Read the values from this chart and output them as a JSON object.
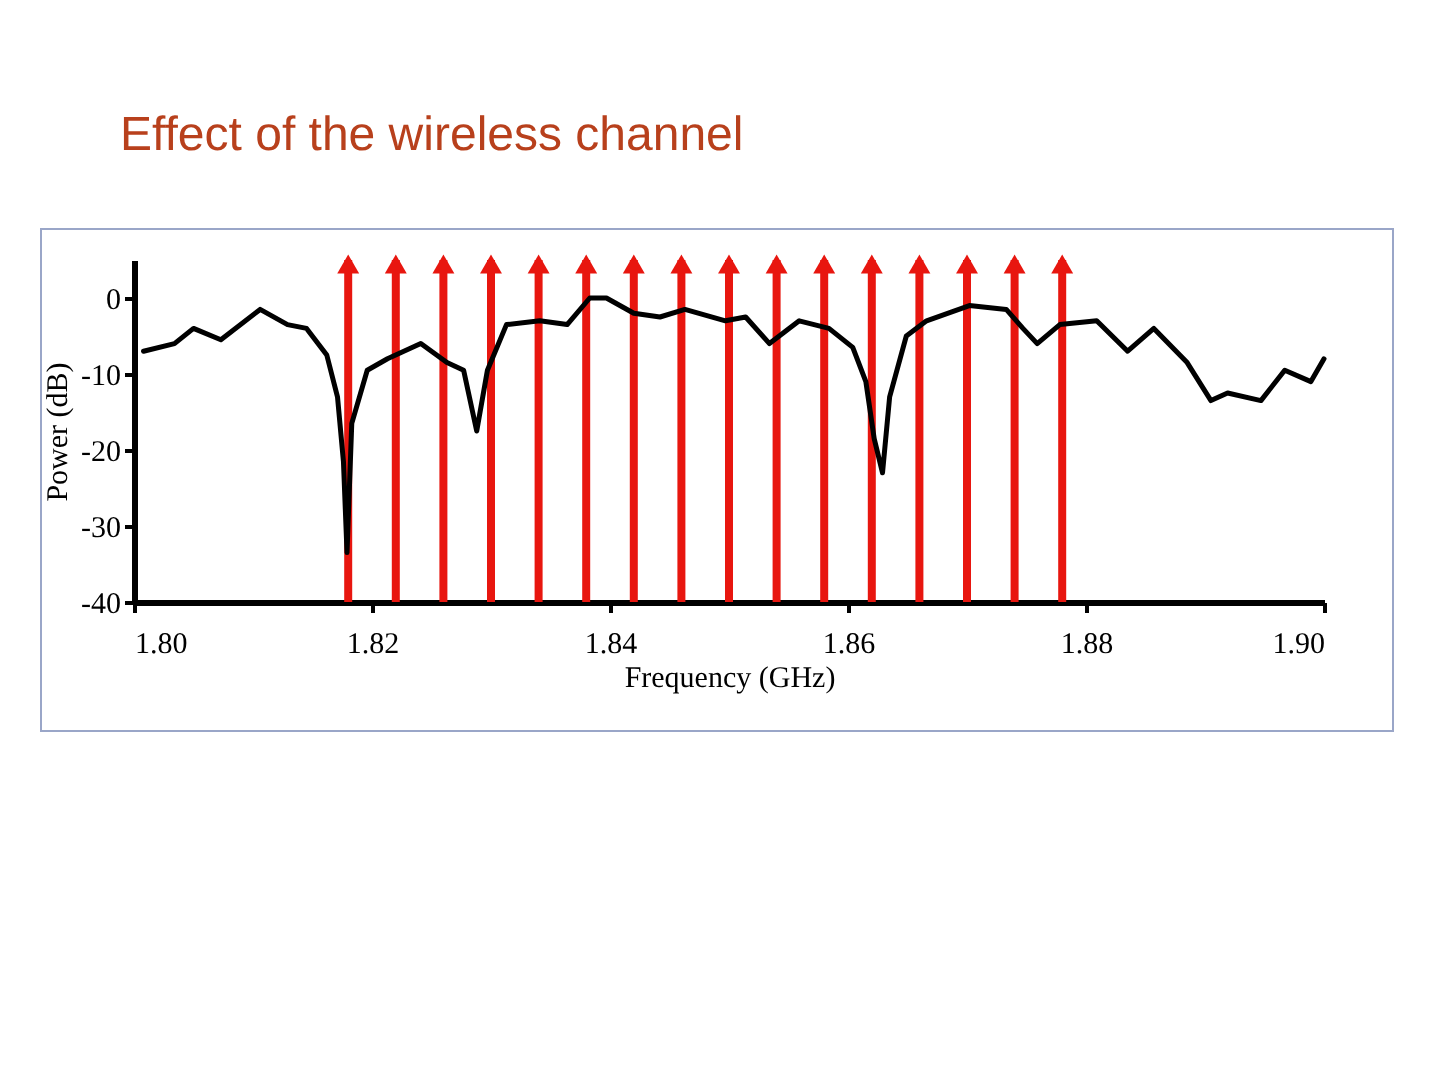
{
  "chart_data": {
    "type": "line",
    "title": "Effect of the wireless channel",
    "xlabel": "Frequency (GHz)",
    "ylabel": "Power (dB)",
    "x": [
      1.8008,
      1.8034,
      1.805,
      1.8073,
      1.8106,
      1.8129,
      1.8145,
      1.8162,
      1.8171,
      1.8176,
      1.8179,
      1.8183,
      1.8196,
      1.8213,
      1.8241,
      1.8263,
      1.8277,
      1.8288,
      1.8297,
      1.8313,
      1.8341,
      1.8364,
      1.8383,
      1.8397,
      1.842,
      1.8442,
      1.8463,
      1.8497,
      1.8514,
      1.8534,
      1.8559,
      1.8584,
      1.8604,
      1.8615,
      1.8622,
      1.8629,
      1.8635,
      1.8649,
      1.8666,
      1.8702,
      1.8733,
      1.8747,
      1.8759,
      1.8778,
      1.8809,
      1.8835,
      1.8857,
      1.8885,
      1.8905,
      1.8919,
      1.8947,
      1.8967,
      1.8989,
      1.9
    ],
    "series": [
      {
        "color": "#000000",
        "values": [
          -7,
          -6,
          -4,
          -5.5,
          -1.5,
          -3.5,
          -4,
          -7.5,
          -13,
          -21.5,
          -33.5,
          -16.5,
          -9.5,
          -8,
          -6,
          -8.5,
          -9.5,
          -17.5,
          -9.5,
          -3.5,
          -3,
          -3.5,
          0,
          0,
          -2,
          -2.5,
          -1.5,
          -3,
          -2.5,
          -6,
          -3,
          -4,
          -6.5,
          -11,
          -18.5,
          -23,
          -13,
          -5,
          -3,
          -1,
          -1.5,
          -4,
          -6,
          -3.5,
          -3,
          -7,
          -4,
          -8.5,
          -13.5,
          -12.5,
          -13.5,
          -9.5,
          -11,
          -8
        ]
      }
    ],
    "xlim": [
      1.8,
      1.9
    ],
    "xticks": [
      {
        "value": 1.8,
        "label": "1.80"
      },
      1.82,
      1.84,
      1.86,
      1.88,
      {
        "value": 1.9,
        "label": "1.90"
      }
    ],
    "ylim": [
      -40,
      5
    ],
    "yticks": [
      -40,
      -30,
      -20,
      -10,
      0
    ],
    "ref_lines": [
      {
        "axis": "x",
        "value": 1.818,
        "color": "#e8160f"
      },
      {
        "axis": "x",
        "value": 1.822,
        "color": "#e8160f"
      },
      {
        "axis": "x",
        "value": 1.826,
        "color": "#e8160f"
      },
      {
        "axis": "x",
        "value": 1.83,
        "color": "#e8160f"
      },
      {
        "axis": "x",
        "value": 1.834,
        "color": "#e8160f"
      },
      {
        "axis": "x",
        "value": 1.838,
        "color": "#e8160f"
      },
      {
        "axis": "x",
        "value": 1.842,
        "color": "#e8160f"
      },
      {
        "axis": "x",
        "value": 1.846,
        "color": "#e8160f"
      },
      {
        "axis": "x",
        "value": 1.85,
        "color": "#e8160f"
      },
      {
        "axis": "x",
        "value": 1.854,
        "color": "#e8160f"
      },
      {
        "axis": "x",
        "value": 1.858,
        "color": "#e8160f"
      },
      {
        "axis": "x",
        "value": 1.862,
        "color": "#e8160f"
      },
      {
        "axis": "x",
        "value": 1.866,
        "color": "#e8160f"
      },
      {
        "axis": "x",
        "value": 1.87,
        "color": "#e8160f"
      },
      {
        "axis": "x",
        "value": 1.874,
        "color": "#e8160f"
      },
      {
        "axis": "x",
        "value": 1.878,
        "color": "#e8160f"
      }
    ],
    "grid": false
  }
}
